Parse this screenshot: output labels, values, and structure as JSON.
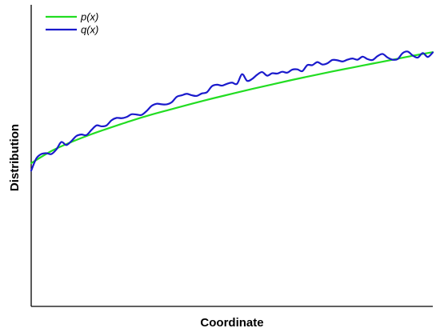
{
  "chart_data": {
    "type": "line",
    "xlabel": "Coordinate",
    "ylabel": "Distribution",
    "xlim": [
      0,
      1
    ],
    "ylim": [
      0,
      1
    ],
    "grid": false,
    "ticks": false,
    "legend_position": "top-left",
    "series": [
      {
        "name": "p(x)",
        "color": "#22dd22",
        "x": [
          0,
          0.05,
          0.1,
          0.15,
          0.2,
          0.25,
          0.3,
          0.35,
          0.4,
          0.45,
          0.5,
          0.55,
          0.6,
          0.65,
          0.7,
          0.75,
          0.8,
          0.85,
          0.9,
          0.95,
          1
        ],
        "values": [
          0.475,
          0.515,
          0.545,
          0.571,
          0.594,
          0.616,
          0.636,
          0.654,
          0.672,
          0.689,
          0.705,
          0.721,
          0.736,
          0.751,
          0.765,
          0.779,
          0.792,
          0.805,
          0.818,
          0.831,
          0.843
        ]
      },
      {
        "name": "q(x)",
        "color": "#1a1acc",
        "x": [
          0,
          0.0125,
          0.025,
          0.0375,
          0.05,
          0.0625,
          0.075,
          0.0875,
          0.1,
          0.1125,
          0.125,
          0.1375,
          0.15,
          0.1625,
          0.175,
          0.1875,
          0.2,
          0.2125,
          0.225,
          0.2375,
          0.25,
          0.2625,
          0.275,
          0.2875,
          0.3,
          0.3125,
          0.325,
          0.3375,
          0.35,
          0.3625,
          0.375,
          0.3875,
          0.4,
          0.4125,
          0.425,
          0.4375,
          0.45,
          0.4625,
          0.475,
          0.4875,
          0.5,
          0.5125,
          0.525,
          0.5375,
          0.55,
          0.5625,
          0.575,
          0.5875,
          0.6,
          0.6125,
          0.625,
          0.6375,
          0.65,
          0.6625,
          0.675,
          0.6875,
          0.7,
          0.7125,
          0.725,
          0.7375,
          0.75,
          0.7625,
          0.775,
          0.7875,
          0.8,
          0.8125,
          0.825,
          0.8375,
          0.85,
          0.8625,
          0.875,
          0.8875,
          0.9,
          0.9125,
          0.925,
          0.9375,
          0.95,
          0.9625,
          0.975,
          0.9875,
          1
        ],
        "values": [
          0.45,
          0.49,
          0.505,
          0.508,
          0.505,
          0.52,
          0.545,
          0.535,
          0.548,
          0.565,
          0.57,
          0.568,
          0.585,
          0.6,
          0.597,
          0.6,
          0.617,
          0.625,
          0.624,
          0.628,
          0.637,
          0.636,
          0.635,
          0.648,
          0.665,
          0.672,
          0.67,
          0.67,
          0.677,
          0.695,
          0.7,
          0.705,
          0.7,
          0.698,
          0.706,
          0.71,
          0.73,
          0.735,
          0.732,
          0.738,
          0.742,
          0.738,
          0.77,
          0.748,
          0.754,
          0.768,
          0.777,
          0.765,
          0.773,
          0.772,
          0.778,
          0.775,
          0.785,
          0.786,
          0.78,
          0.8,
          0.8,
          0.81,
          0.802,
          0.806,
          0.817,
          0.816,
          0.812,
          0.818,
          0.822,
          0.818,
          0.828,
          0.82,
          0.817,
          0.83,
          0.837,
          0.825,
          0.818,
          0.82,
          0.84,
          0.845,
          0.832,
          0.825,
          0.84,
          0.827,
          0.842
        ]
      }
    ]
  }
}
